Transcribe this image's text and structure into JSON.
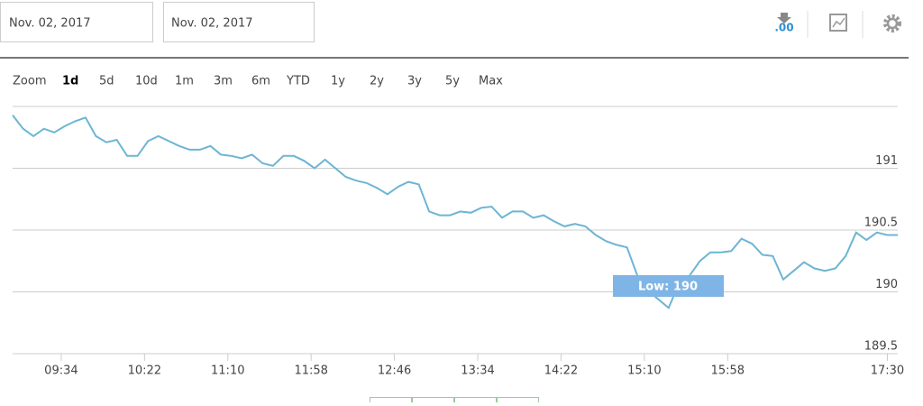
{
  "toolbar": {
    "start_date": "Nov. 02, 2017",
    "end_date": "Nov. 02, 2017",
    "decimals_icon": ".00"
  },
  "zoom": {
    "label": "Zoom",
    "options": [
      "1d",
      "5d",
      "10d",
      "1m",
      "3m",
      "6m",
      "YTD",
      "1y",
      "2y",
      "3y",
      "5y",
      "Max"
    ],
    "active_index": 0
  },
  "chart_data": {
    "type": "line",
    "annotation": "Low: 190",
    "x": [
      "09:06",
      "09:12",
      "09:18",
      "09:24",
      "09:30",
      "09:36",
      "09:42",
      "09:48",
      "09:54",
      "10:00",
      "10:06",
      "10:12",
      "10:18",
      "10:24",
      "10:30",
      "10:36",
      "10:42",
      "10:48",
      "10:54",
      "11:00",
      "11:06",
      "11:12",
      "11:18",
      "11:24",
      "11:30",
      "11:36",
      "11:42",
      "11:48",
      "11:54",
      "12:00",
      "12:06",
      "12:12",
      "12:18",
      "12:24",
      "12:30",
      "12:36",
      "12:42",
      "12:48",
      "12:54",
      "13:00",
      "13:06",
      "13:12",
      "13:18",
      "13:24",
      "13:30",
      "13:36",
      "13:42",
      "13:48",
      "13:54",
      "14:00",
      "14:06",
      "14:12",
      "14:18",
      "14:24",
      "14:30",
      "14:36",
      "14:42",
      "14:48",
      "14:54",
      "15:00",
      "15:06",
      "15:12",
      "15:18",
      "15:24",
      "15:30",
      "15:36",
      "15:42",
      "15:48",
      "15:54",
      "16:00",
      "16:06",
      "16:12",
      "16:18",
      "16:24",
      "16:30",
      "16:36",
      "16:42",
      "16:48",
      "16:54",
      "17:00",
      "17:06",
      "17:12",
      "17:18",
      "17:24",
      "17:30",
      "17:36"
    ],
    "series": [
      {
        "color": "#6cb5d4",
        "values": [
          191.43,
          191.32,
          191.26,
          191.32,
          191.29,
          191.34,
          191.38,
          191.41,
          191.26,
          191.21,
          191.23,
          191.1,
          191.1,
          191.22,
          191.26,
          191.22,
          191.18,
          191.15,
          191.15,
          191.18,
          191.11,
          191.1,
          191.08,
          191.11,
          191.04,
          191.02,
          191.1,
          191.1,
          191.06,
          191.0,
          191.07,
          191.0,
          190.93,
          190.9,
          190.88,
          190.84,
          190.79,
          190.85,
          190.89,
          190.87,
          190.65,
          190.62,
          190.62,
          190.65,
          190.64,
          190.68,
          190.69,
          190.6,
          190.65,
          190.65,
          190.6,
          190.62,
          190.57,
          190.53,
          190.55,
          190.53,
          190.46,
          190.41,
          190.38,
          190.36,
          190.13,
          190.01,
          189.94,
          189.87,
          190.07,
          190.13,
          190.25,
          190.32,
          190.32,
          190.33,
          190.43,
          190.39,
          190.3,
          190.29,
          190.1,
          190.17,
          190.24,
          190.19,
          190.17,
          190.19,
          190.29,
          190.48,
          190.42,
          190.48,
          190.46,
          190.46
        ]
      }
    ],
    "xlim": [
      "09:06",
      "17:36"
    ],
    "xticks": [
      "09:34",
      "10:22",
      "11:10",
      "11:58",
      "12:46",
      "13:34",
      "14:22",
      "15:10",
      "15:58",
      "17:30"
    ],
    "ylim": [
      189.5,
      191.5
    ],
    "yticks": [
      189.5,
      190,
      190.5,
      191
    ],
    "grid": true
  }
}
